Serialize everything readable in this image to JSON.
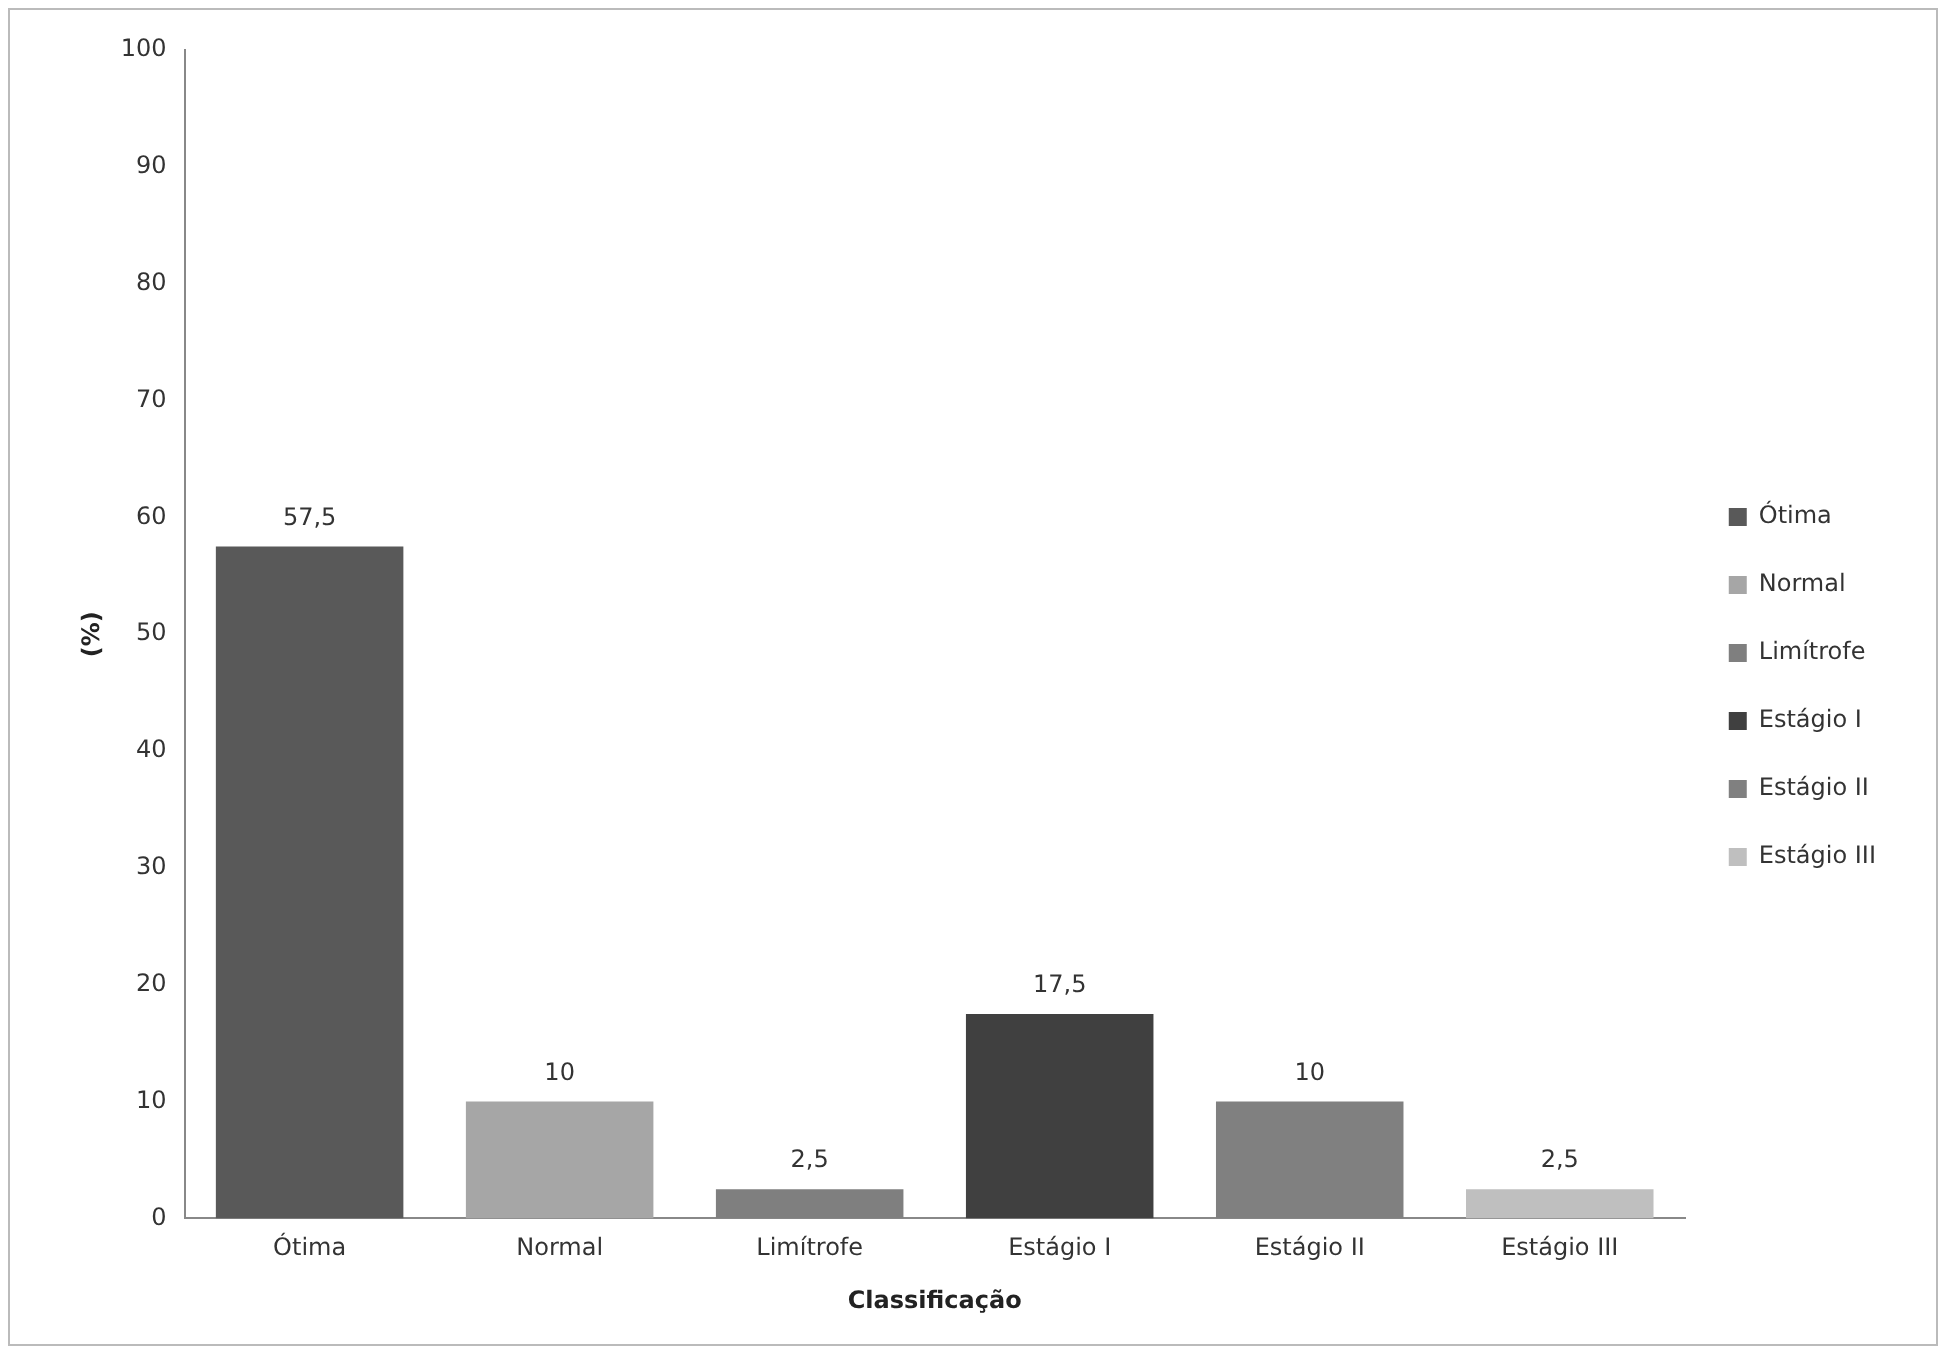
{
  "chart_data": {
    "type": "bar",
    "xlabel": "Classificação",
    "ylabel": "(%)",
    "stacked": true,
    "categories": [
      "Ótima",
      "Normal",
      "Limítrofe",
      "Estágio I",
      "Estágio II",
      "Estágio III"
    ],
    "series": [
      {
        "name": "Ótima",
        "color": "#595959",
        "values": [
          57.5,
          null,
          null,
          null,
          null,
          null
        ],
        "value_labels": [
          "57,5",
          null,
          null,
          null,
          null,
          null
        ]
      },
      {
        "name": "Normal",
        "color": "#a6a6a6",
        "values": [
          null,
          10,
          null,
          null,
          null,
          null
        ],
        "value_labels": [
          null,
          "10",
          null,
          null,
          null,
          null
        ]
      },
      {
        "name": "Limítrofe",
        "color": "#7f7f7f",
        "values": [
          null,
          null,
          2.5,
          null,
          null,
          null
        ],
        "value_labels": [
          null,
          null,
          "2,5",
          null,
          null,
          null
        ]
      },
      {
        "name": "Estágio I",
        "color": "#404040",
        "values": [
          null,
          null,
          null,
          17.5,
          null,
          null
        ],
        "value_labels": [
          null,
          null,
          null,
          "17,5",
          null,
          null
        ]
      },
      {
        "name": "Estágio II",
        "color": "#808080",
        "values": [
          null,
          null,
          null,
          null,
          10,
          null
        ],
        "value_labels": [
          null,
          null,
          null,
          null,
          "10",
          null
        ]
      },
      {
        "name": "Estágio III",
        "color": "#bfbfbf",
        "values": [
          null,
          null,
          null,
          null,
          null,
          2.5
        ],
        "value_labels": [
          null,
          null,
          null,
          null,
          null,
          "2,5"
        ]
      }
    ],
    "ylim": [
      0,
      100
    ],
    "yticks": [
      0,
      10,
      20,
      30,
      40,
      50,
      60,
      70,
      80,
      90,
      100
    ],
    "grid": false,
    "legend": "right"
  }
}
